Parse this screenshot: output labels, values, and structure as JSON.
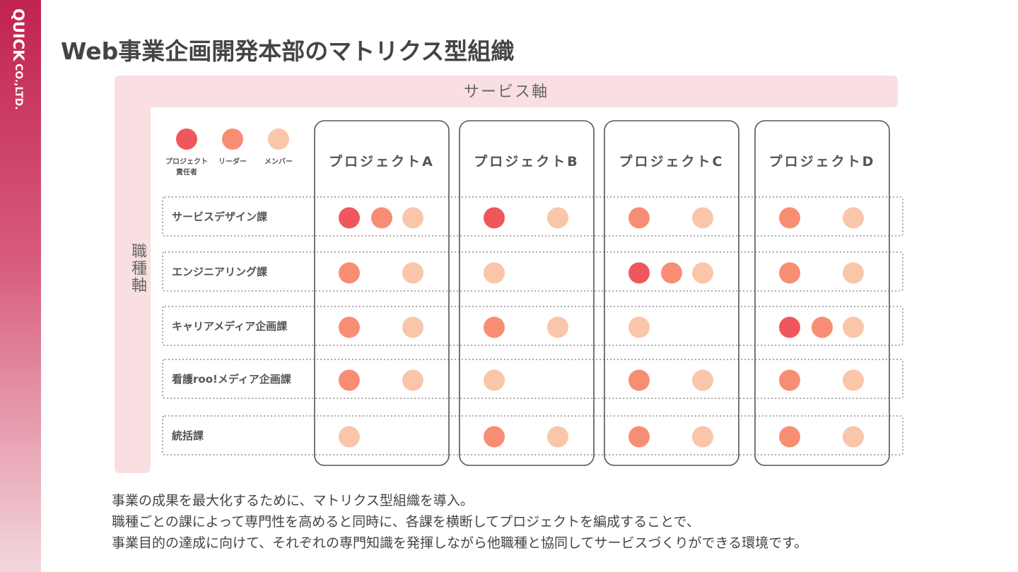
{
  "brand": {
    "name": "QUICK",
    "suffix": "CO.,LTD."
  },
  "header": {
    "title": "Web事業企画開発本部のマトリクス型組織"
  },
  "axes": {
    "service": "サービス軸",
    "job": "職種軸"
  },
  "legend": [
    {
      "label": "プロジェクト\n責任者",
      "color": "#f0575c"
    },
    {
      "label": "リーダー",
      "color": "#f78e74"
    },
    {
      "label": "メンバー",
      "color": "#f9c6aa"
    }
  ],
  "projects": [
    "プロジェクトA",
    "プロジェクトB",
    "プロジェクトC",
    "プロジェクトD"
  ],
  "departments": [
    {
      "name": "サービスデザイン課",
      "cells": [
        [
          0,
          1,
          2
        ],
        [
          0,
          2
        ],
        [
          1,
          2
        ],
        [
          1,
          2
        ]
      ]
    },
    {
      "name": "エンジニアリング課",
      "cells": [
        [
          1,
          2
        ],
        [
          2
        ],
        [
          0,
          1,
          2
        ],
        [
          1,
          2
        ]
      ]
    },
    {
      "name": "キャリアメディア企画課",
      "cells": [
        [
          1,
          2
        ],
        [
          1,
          2
        ],
        [
          2
        ],
        [
          0,
          1,
          2
        ]
      ]
    },
    {
      "name": "看護roo!メディア企画課",
      "cells": [
        [
          1,
          2
        ],
        [
          2
        ],
        [
          1,
          2
        ],
        [
          1,
          2
        ]
      ]
    },
    {
      "name": "統括課",
      "cells": [
        [
          2
        ],
        [
          1,
          2
        ],
        [
          1,
          2
        ],
        [
          1,
          2
        ]
      ]
    }
  ],
  "footer": {
    "lines": [
      "事業の成果を最大化するために、マトリクス型組織を導入。",
      "職種ごとの課によって専門性を高めると同時に、各課を横断してプロジェクトを編成することで、",
      "事業目的の達成に向けて、それぞれの専門知識を発揮しながら他職種と協同してサービスづくりができる環境です。"
    ]
  }
}
